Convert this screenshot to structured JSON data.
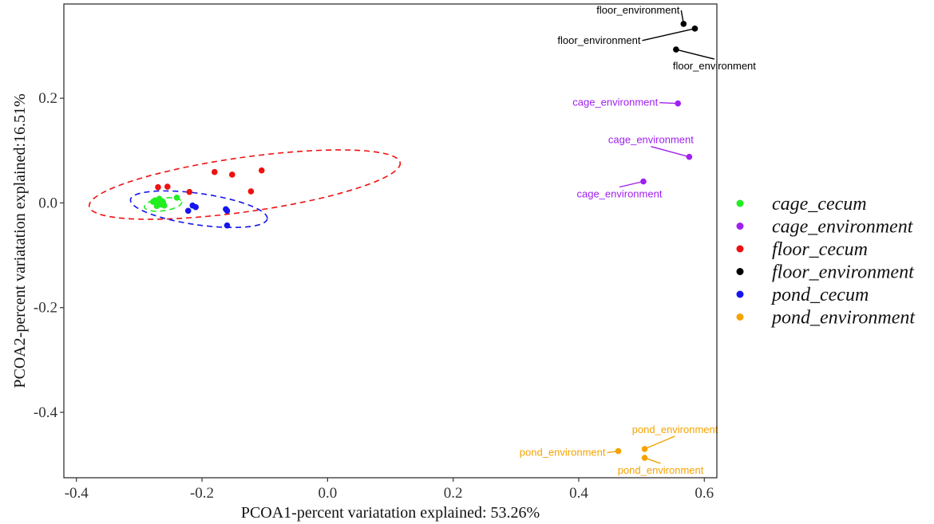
{
  "chart_data": {
    "type": "scatter",
    "xlabel": "PCOA1-percent variatation explained: 53.26%",
    "ylabel": "PCOA2-percent variatation explained:16.51%",
    "xlim": [
      -0.42,
      0.62
    ],
    "ylim": [
      -0.525,
      0.38
    ],
    "x_ticks": [
      -0.4,
      -0.2,
      0.0,
      0.2,
      0.4,
      0.6
    ],
    "x_tick_labels": [
      "-0.4",
      "-0.2",
      "0.0",
      "0.2",
      "0.4",
      "0.6"
    ],
    "y_ticks": [
      -0.4,
      -0.2,
      0.0,
      0.2
    ],
    "y_tick_labels": [
      "-0.4",
      "-0.2",
      "0.0",
      "0.2"
    ],
    "grid": false,
    "legend_position": "right",
    "series": [
      {
        "name": "cage_cecum",
        "color": "#22ee22",
        "points": [
          {
            "x": -0.275,
            "y": 0.005
          },
          {
            "x": -0.27,
            "y": 0.0
          },
          {
            "x": -0.268,
            "y": 0.008
          },
          {
            "x": -0.265,
            "y": -0.003
          },
          {
            "x": -0.263,
            "y": 0.003
          },
          {
            "x": -0.26,
            "y": -0.005
          },
          {
            "x": -0.272,
            "y": -0.006
          },
          {
            "x": -0.278,
            "y": 0.002
          },
          {
            "x": -0.24,
            "y": 0.01
          },
          {
            "x": -0.262,
            "y": 0.001
          }
        ],
        "ellipse": {
          "cx": -0.262,
          "cy": -0.003,
          "rx": 0.03,
          "ry": 0.012,
          "angle": 8
        }
      },
      {
        "name": "cage_environment",
        "color": "#a020f0",
        "points": [
          {
            "x": 0.558,
            "y": 0.19,
            "label": "cage_environment"
          },
          {
            "x": 0.576,
            "y": 0.088,
            "label": "cage_environment"
          },
          {
            "x": 0.503,
            "y": 0.041,
            "label": "cage_environment"
          }
        ]
      },
      {
        "name": "floor_cecum",
        "color": "#ee1111",
        "points": [
          {
            "x": -0.27,
            "y": 0.03
          },
          {
            "x": -0.255,
            "y": 0.031
          },
          {
            "x": -0.22,
            "y": 0.021
          },
          {
            "x": -0.18,
            "y": 0.059
          },
          {
            "x": -0.152,
            "y": 0.054
          },
          {
            "x": -0.105,
            "y": 0.062
          },
          {
            "x": -0.122,
            "y": 0.022
          }
        ],
        "ellipse": {
          "cx": -0.132,
          "cy": 0.035,
          "rx": 0.25,
          "ry": 0.052,
          "angle": 8
        }
      },
      {
        "name": "floor_environment",
        "color": "#000000",
        "points": [
          {
            "x": 0.567,
            "y": 0.342,
            "label": "floor_environment"
          },
          {
            "x": 0.585,
            "y": 0.333,
            "label": "floor_environment"
          },
          {
            "x": 0.555,
            "y": 0.293,
            "label": "floor_environment"
          }
        ]
      },
      {
        "name": "pond_cecum",
        "color": "#1515ee",
        "points": [
          {
            "x": -0.222,
            "y": -0.015
          },
          {
            "x": -0.21,
            "y": -0.008
          },
          {
            "x": -0.215,
            "y": -0.005
          },
          {
            "x": -0.162,
            "y": -0.012
          },
          {
            "x": -0.16,
            "y": -0.015
          },
          {
            "x": -0.16,
            "y": -0.043
          }
        ],
        "ellipse": {
          "cx": -0.205,
          "cy": -0.012,
          "rx": 0.11,
          "ry": 0.03,
          "angle": -8
        }
      },
      {
        "name": "pond_environment",
        "color": "#f5a300",
        "points": [
          {
            "x": 0.463,
            "y": -0.474,
            "label": "pond_environment"
          },
          {
            "x": 0.505,
            "y": -0.47,
            "label": "pond_environment"
          },
          {
            "x": 0.505,
            "y": -0.487,
            "label": "pond_environment"
          }
        ]
      }
    ]
  }
}
